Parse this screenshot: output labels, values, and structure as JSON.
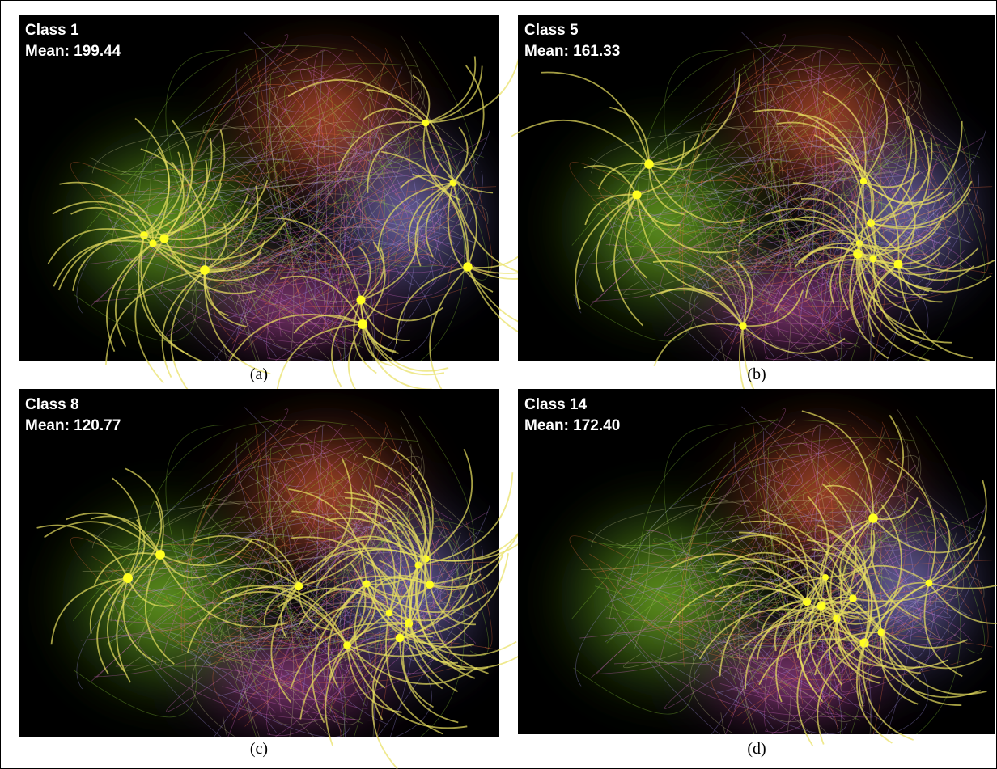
{
  "panels": [
    {
      "title": "Class 1",
      "subtitle": "Mean: 199.44",
      "caption": "(a)"
    },
    {
      "title": "Class 5",
      "subtitle": "Mean: 161.33",
      "caption": "(b)"
    },
    {
      "title": "Class 8",
      "subtitle": "Mean: 120.77",
      "caption": "(c)"
    },
    {
      "title": "Class 14",
      "subtitle": "Mean: 172.40",
      "caption": "(d)"
    }
  ]
}
